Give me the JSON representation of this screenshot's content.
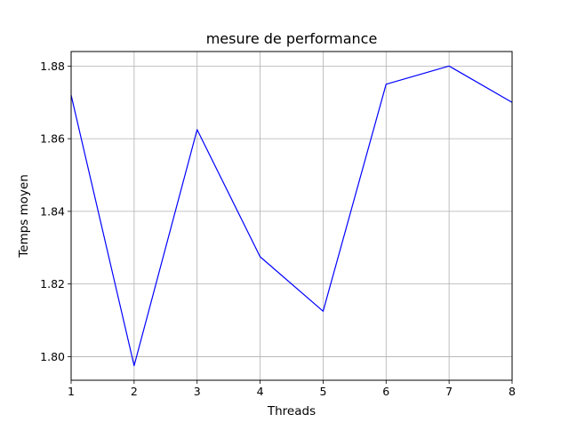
{
  "chart_data": {
    "type": "line",
    "title": "mesure de performance",
    "xlabel": "Threads",
    "ylabel": "Temps moyen",
    "xlim": [
      1,
      8
    ],
    "ylim": [
      1.7935,
      1.884
    ],
    "xticks": [
      1,
      2,
      3,
      4,
      5,
      6,
      7,
      8
    ],
    "xtick_labels": [
      "1",
      "2",
      "3",
      "4",
      "5",
      "6",
      "7",
      "8"
    ],
    "yticks": [
      1.8,
      1.82,
      1.84,
      1.86,
      1.88
    ],
    "ytick_labels": [
      "1.80",
      "1.82",
      "1.84",
      "1.86",
      "1.88"
    ],
    "grid": true,
    "series": [
      {
        "color": "#0000ff",
        "x": [
          1,
          2,
          3,
          4,
          5,
          6,
          7,
          8
        ],
        "y": [
          1.872,
          1.7975,
          1.8625,
          1.8275,
          1.8125,
          1.875,
          1.88,
          1.87
        ]
      }
    ]
  }
}
